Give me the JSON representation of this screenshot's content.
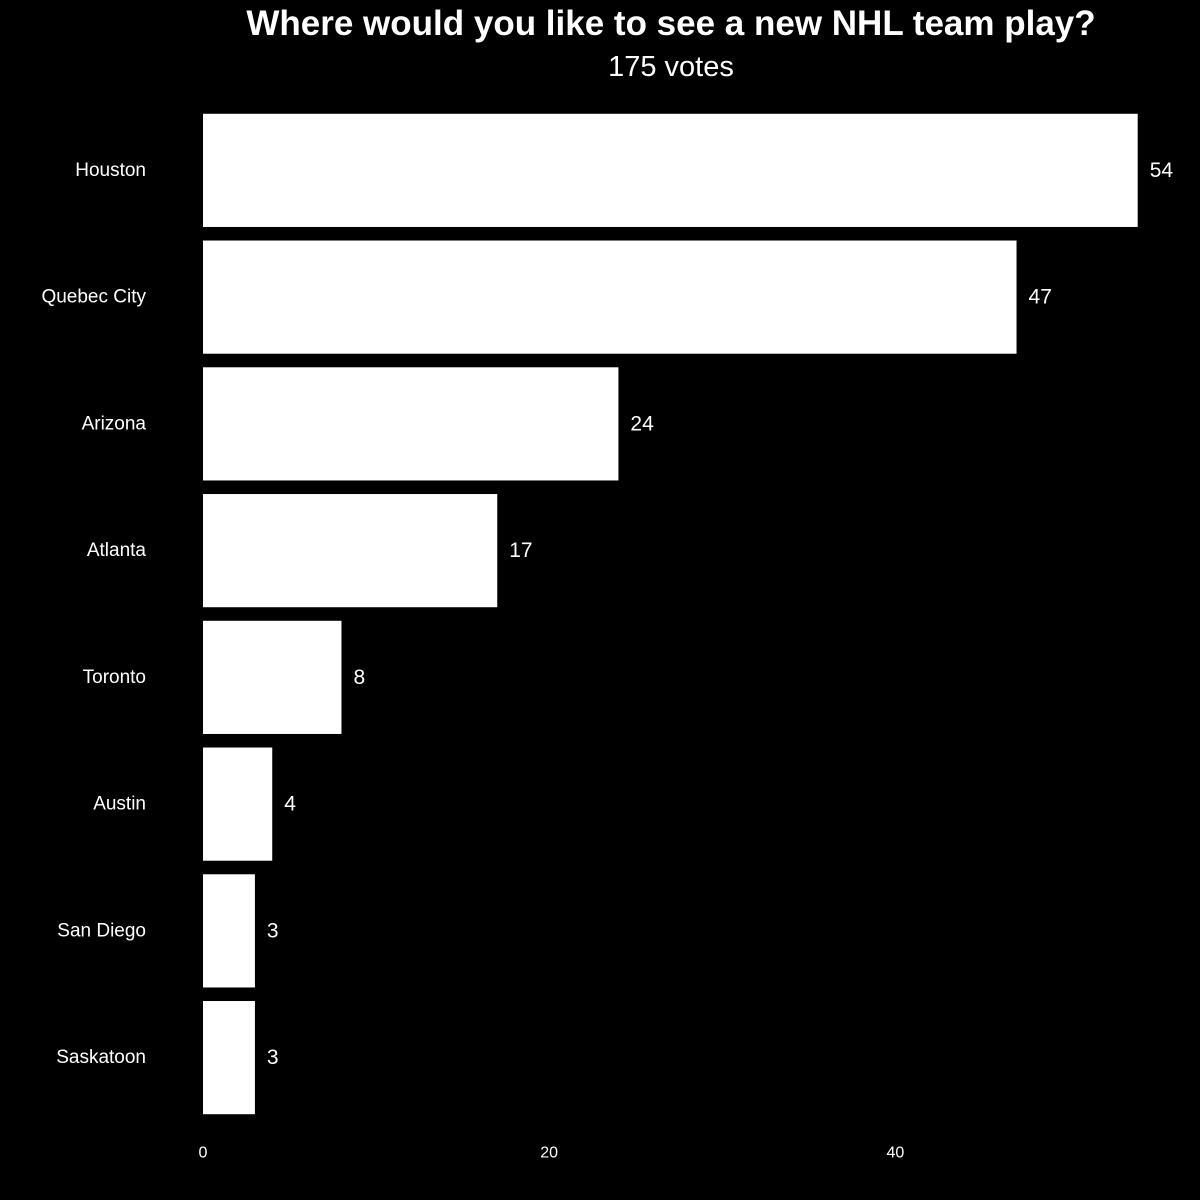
{
  "chart_data": {
    "type": "bar",
    "orientation": "horizontal",
    "title": "Where would you like to see a new NHL team play?",
    "subtitle": "175 votes",
    "categories": [
      "Houston",
      "Quebec City",
      "Arizona",
      "Atlanta",
      "Toronto",
      "Austin",
      "San Diego",
      "Saskatoon"
    ],
    "values": [
      54,
      47,
      24,
      17,
      8,
      4,
      3,
      3
    ],
    "xlim": [
      0,
      55
    ],
    "xticks": [
      0,
      20,
      40
    ],
    "xlabel": "",
    "ylabel": "",
    "grid": false,
    "legend": "none",
    "colors": {
      "background": "#000000",
      "bar": "#ffffff",
      "text": "#ffffff"
    }
  }
}
